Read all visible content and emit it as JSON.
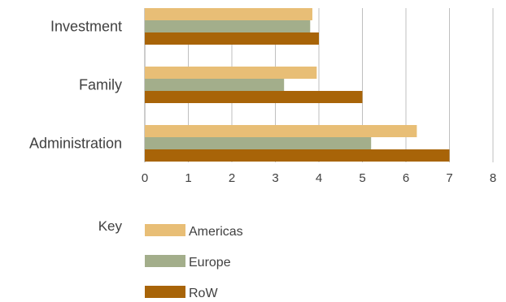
{
  "chart_data": {
    "type": "bar",
    "orientation": "horizontal",
    "categories": [
      "Investment",
      "Family",
      "Administration"
    ],
    "series": [
      {
        "name": "Americas",
        "values": [
          3.85,
          3.95,
          6.25
        ],
        "color": "#E8BE76"
      },
      {
        "name": "Europe",
        "values": [
          3.8,
          3.2,
          5.2
        ],
        "color": "#A3AE8B"
      },
      {
        "name": "RoW",
        "values": [
          4.0,
          5.0,
          7.0
        ],
        "color": "#A86408"
      }
    ],
    "xlim": [
      0,
      8
    ],
    "xticks": [
      "0",
      "1",
      "2",
      "3",
      "4",
      "5",
      "6",
      "7",
      "8"
    ],
    "grid": true,
    "legend_title": "Key",
    "legend_position": "bottom"
  }
}
